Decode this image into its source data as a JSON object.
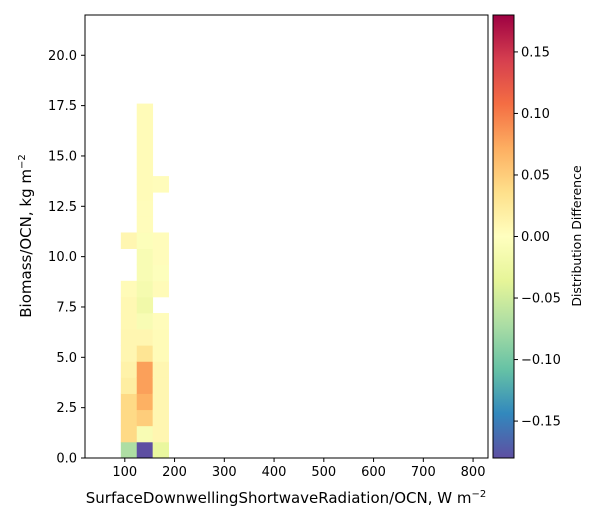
{
  "chart_data": {
    "type": "heatmap",
    "title": "",
    "xlabel": "SurfaceDownwellingShortwaveRadiation/OCN,  W m",
    "xlabel_sup": "−2",
    "ylabel": "Biomass/OCN,  kg m",
    "ylabel_sup": "−2",
    "xlim": [
      20,
      830
    ],
    "ylim": [
      0,
      22
    ],
    "xticks": [
      100,
      200,
      300,
      400,
      500,
      600,
      700,
      800
    ],
    "xtick_labels": [
      "100",
      "200",
      "300",
      "400",
      "500",
      "600",
      "700",
      "800"
    ],
    "yticks": [
      0,
      2.5,
      5,
      7.5,
      10,
      12.5,
      15,
      17.5,
      20
    ],
    "ytick_labels": [
      "0.0",
      "2.5",
      "5.0",
      "7.5",
      "10.0",
      "12.5",
      "15.0",
      "17.5",
      "20.0"
    ],
    "bin_width_x": 32,
    "bin_height_y": 0.8,
    "colorbar": {
      "label": "Distribution Difference",
      "vmin": -0.18,
      "vmax": 0.18,
      "ticks": [
        -0.15,
        -0.1,
        -0.05,
        0.0,
        0.05,
        0.1,
        0.15
      ],
      "tick_labels": [
        "−0.15",
        "−0.10",
        "−0.05",
        "0.00",
        "0.05",
        "0.10",
        "0.15"
      ],
      "colormap": "Spectral_r"
    },
    "cells": [
      {
        "x": 92,
        "y": 0,
        "value": -0.07
      },
      {
        "x": 92,
        "y": 0.8,
        "value": 0.04
      },
      {
        "x": 92,
        "y": 1.6,
        "value": 0.04
      },
      {
        "x": 92,
        "y": 2.4,
        "value": 0.04
      },
      {
        "x": 92,
        "y": 3.2,
        "value": 0.02
      },
      {
        "x": 92,
        "y": 4.0,
        "value": 0.015
      },
      {
        "x": 92,
        "y": 4.8,
        "value": 0.01
      },
      {
        "x": 92,
        "y": 5.6,
        "value": 0.01
      },
      {
        "x": 92,
        "y": 6.4,
        "value": 0.008
      },
      {
        "x": 92,
        "y": 7.2,
        "value": 0.008
      },
      {
        "x": 92,
        "y": 8.0,
        "value": 0.005
      },
      {
        "x": 92,
        "y": 10.4,
        "value": 0.01
      },
      {
        "x": 124,
        "y": 0,
        "value": -0.18
      },
      {
        "x": 124,
        "y": 0.8,
        "value": -0.01
      },
      {
        "x": 124,
        "y": 1.6,
        "value": 0.05
      },
      {
        "x": 124,
        "y": 2.4,
        "value": 0.07
      },
      {
        "x": 124,
        "y": 3.2,
        "value": 0.08
      },
      {
        "x": 124,
        "y": 4.0,
        "value": 0.08
      },
      {
        "x": 124,
        "y": 4.8,
        "value": 0.03
      },
      {
        "x": 124,
        "y": 5.6,
        "value": 0.01
      },
      {
        "x": 124,
        "y": 6.4,
        "value": -0.01
      },
      {
        "x": 124,
        "y": 7.2,
        "value": -0.02
      },
      {
        "x": 124,
        "y": 8.0,
        "value": -0.015
      },
      {
        "x": 124,
        "y": 8.8,
        "value": -0.01
      },
      {
        "x": 124,
        "y": 9.6,
        "value": -0.01
      },
      {
        "x": 124,
        "y": 10.4,
        "value": -0.005
      },
      {
        "x": 124,
        "y": 11.2,
        "value": 0.003
      },
      {
        "x": 124,
        "y": 12.0,
        "value": 0.003
      },
      {
        "x": 124,
        "y": 12.8,
        "value": 0.005
      },
      {
        "x": 124,
        "y": 13.6,
        "value": 0.005
      },
      {
        "x": 124,
        "y": 14.4,
        "value": 0.005
      },
      {
        "x": 124,
        "y": 15.2,
        "value": 0.005
      },
      {
        "x": 124,
        "y": 16.0,
        "value": 0.005
      },
      {
        "x": 124,
        "y": 16.8,
        "value": 0.005
      },
      {
        "x": 156,
        "y": 0,
        "value": -0.03
      },
      {
        "x": 156,
        "y": 0.8,
        "value": 0.01
      },
      {
        "x": 156,
        "y": 1.6,
        "value": 0.01
      },
      {
        "x": 156,
        "y": 2.4,
        "value": 0.01
      },
      {
        "x": 156,
        "y": 3.2,
        "value": 0.01
      },
      {
        "x": 156,
        "y": 4.0,
        "value": 0.01
      },
      {
        "x": 156,
        "y": 4.8,
        "value": 0.005
      },
      {
        "x": 156,
        "y": 5.6,
        "value": 0.005
      },
      {
        "x": 156,
        "y": 6.4,
        "value": 0.003
      },
      {
        "x": 156,
        "y": 8.0,
        "value": 0.005
      },
      {
        "x": 156,
        "y": 8.8,
        "value": -0.003
      },
      {
        "x": 156,
        "y": 9.6,
        "value": 0.003
      },
      {
        "x": 156,
        "y": 10.4,
        "value": 0.003
      },
      {
        "x": 156,
        "y": 13.2,
        "value": 0.003
      }
    ]
  }
}
